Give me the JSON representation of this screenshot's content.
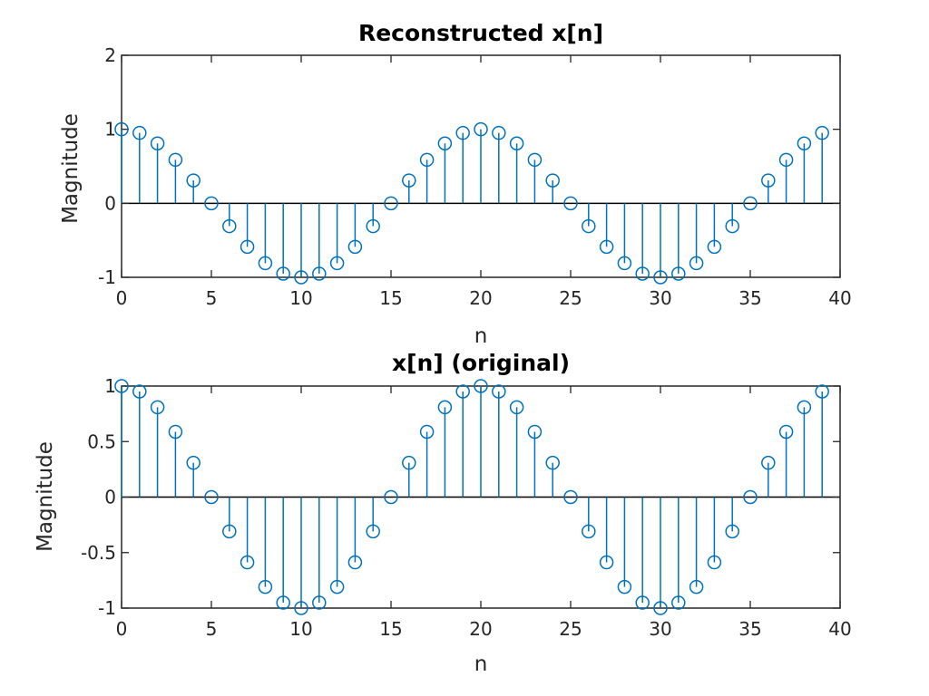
{
  "chart_data": [
    {
      "type": "stem",
      "title": "Reconstructed x[n]",
      "xlabel": "n",
      "ylabel": "Magnitude",
      "xlim": [
        0,
        40
      ],
      "ylim": [
        -1,
        2
      ],
      "xticks": [
        "0",
        "5",
        "10",
        "15",
        "20",
        "25",
        "30",
        "35",
        "40"
      ],
      "yticks": [
        "-1",
        "0",
        "1",
        "2"
      ],
      "grid": false,
      "color": "#0072BD",
      "x": [
        0,
        1,
        2,
        3,
        4,
        5,
        6,
        7,
        8,
        9,
        10,
        11,
        12,
        13,
        14,
        15,
        16,
        17,
        18,
        19,
        20,
        21,
        22,
        23,
        24,
        25,
        26,
        27,
        28,
        29,
        30,
        31,
        32,
        33,
        34,
        35,
        36,
        37,
        38,
        39
      ],
      "y": [
        1,
        0.951,
        0.809,
        0.588,
        0.309,
        0,
        -0.309,
        -0.588,
        -0.809,
        -0.951,
        -1,
        -0.951,
        -0.809,
        -0.588,
        -0.309,
        0,
        0.309,
        0.588,
        0.809,
        0.951,
        1,
        0.951,
        0.809,
        0.588,
        0.309,
        0,
        -0.309,
        -0.588,
        -0.809,
        -0.951,
        -1,
        -0.951,
        -0.809,
        -0.588,
        -0.309,
        0,
        0.309,
        0.588,
        0.809,
        0.951
      ]
    },
    {
      "type": "stem",
      "title": "x[n] (original)",
      "xlabel": "n",
      "ylabel": "Magnitude",
      "xlim": [
        0,
        40
      ],
      "ylim": [
        -1,
        1
      ],
      "xticks": [
        "0",
        "5",
        "10",
        "15",
        "20",
        "25",
        "30",
        "35",
        "40"
      ],
      "yticks": [
        "-1",
        "-0.5",
        "0",
        "0.5",
        "1"
      ],
      "grid": false,
      "color": "#0072BD",
      "x": [
        0,
        1,
        2,
        3,
        4,
        5,
        6,
        7,
        8,
        9,
        10,
        11,
        12,
        13,
        14,
        15,
        16,
        17,
        18,
        19,
        20,
        21,
        22,
        23,
        24,
        25,
        26,
        27,
        28,
        29,
        30,
        31,
        32,
        33,
        34,
        35,
        36,
        37,
        38,
        39
      ],
      "y": [
        1,
        0.951,
        0.809,
        0.588,
        0.309,
        0,
        -0.309,
        -0.588,
        -0.809,
        -0.951,
        -1,
        -0.951,
        -0.809,
        -0.588,
        -0.309,
        0,
        0.309,
        0.588,
        0.809,
        0.951,
        1,
        0.951,
        0.809,
        0.588,
        0.309,
        0,
        -0.309,
        -0.588,
        -0.809,
        -0.951,
        -1,
        -0.951,
        -0.809,
        -0.588,
        -0.309,
        0,
        0.309,
        0.588,
        0.809,
        0.951
      ]
    }
  ]
}
